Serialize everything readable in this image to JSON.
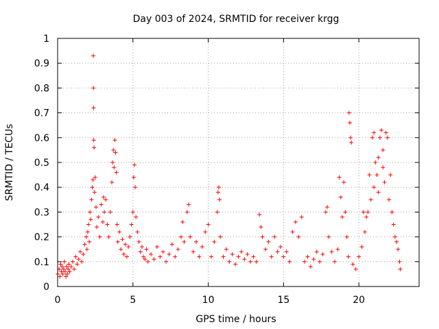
{
  "chart_data": {
    "type": "scatter",
    "title": "Day 003 of 2024, SRMTID for receiver krgg",
    "xlabel": "GPS time / hours",
    "ylabel": "SRMTID / TECUs",
    "xlim": [
      0,
      24
    ],
    "ylim": [
      0,
      1
    ],
    "xticks": [
      0,
      5,
      10,
      15,
      20
    ],
    "xtick_labels": [
      "0",
      "5",
      "10",
      "15",
      "20"
    ],
    "yticks": [
      0,
      0.1,
      0.2,
      0.3,
      0.4,
      0.5,
      0.6,
      0.7,
      0.8,
      0.9,
      1
    ],
    "ytick_labels": [
      "0",
      "0.1",
      "0.2",
      "0.3",
      "0.4",
      "0.5",
      "0.6",
      "0.7",
      "0.8",
      "0.9",
      "1"
    ],
    "grid": true,
    "marker": "+",
    "color": "#ff0000",
    "series": [
      {
        "name": "SRMTID",
        "points": [
          [
            0.0,
            0.05
          ],
          [
            0.1,
            0.07
          ],
          [
            0.15,
            0.04
          ],
          [
            0.2,
            0.09
          ],
          [
            0.25,
            0.06
          ],
          [
            0.3,
            0.08
          ],
          [
            0.35,
            0.05
          ],
          [
            0.4,
            0.07
          ],
          [
            0.45,
            0.1
          ],
          [
            0.5,
            0.06
          ],
          [
            0.55,
            0.04
          ],
          [
            0.6,
            0.08
          ],
          [
            0.65,
            0.05
          ],
          [
            0.7,
            0.07
          ],
          [
            0.75,
            0.09
          ],
          [
            0.8,
            0.06
          ],
          [
            0.9,
            0.08
          ],
          [
            1.0,
            0.1
          ],
          [
            1.1,
            0.07
          ],
          [
            1.2,
            0.12
          ],
          [
            1.3,
            0.09
          ],
          [
            1.4,
            0.11
          ],
          [
            1.5,
            0.14
          ],
          [
            1.6,
            0.1
          ],
          [
            1.7,
            0.13
          ],
          [
            1.8,
            0.17
          ],
          [
            1.9,
            0.2
          ],
          [
            1.95,
            0.15
          ],
          [
            2.0,
            0.22
          ],
          [
            2.05,
            0.25
          ],
          [
            2.1,
            0.18
          ],
          [
            2.15,
            0.3
          ],
          [
            2.2,
            0.27
          ],
          [
            2.25,
            0.35
          ],
          [
            2.3,
            0.4
          ],
          [
            2.35,
            0.43
          ],
          [
            2.37,
            0.93
          ],
          [
            2.38,
            0.8
          ],
          [
            2.39,
            0.72
          ],
          [
            2.4,
            0.59
          ],
          [
            2.42,
            0.56
          ],
          [
            2.45,
            0.38
          ],
          [
            2.5,
            0.44
          ],
          [
            2.55,
            0.32
          ],
          [
            2.6,
            0.24
          ],
          [
            2.7,
            0.28
          ],
          [
            2.8,
            0.2
          ],
          [
            2.9,
            0.33
          ],
          [
            3.0,
            0.26
          ],
          [
            3.05,
            0.36
          ],
          [
            3.1,
            0.3
          ],
          [
            3.2,
            0.35
          ],
          [
            3.3,
            0.25
          ],
          [
            3.4,
            0.2
          ],
          [
            3.5,
            0.3
          ],
          [
            3.6,
            0.42
          ],
          [
            3.65,
            0.5
          ],
          [
            3.7,
            0.55
          ],
          [
            3.75,
            0.48
          ],
          [
            3.8,
            0.59
          ],
          [
            3.85,
            0.54
          ],
          [
            3.9,
            0.46
          ],
          [
            3.95,
            0.25
          ],
          [
            4.0,
            0.18
          ],
          [
            4.1,
            0.22
          ],
          [
            4.2,
            0.15
          ],
          [
            4.3,
            0.19
          ],
          [
            4.4,
            0.13
          ],
          [
            4.5,
            0.17
          ],
          [
            4.6,
            0.12
          ],
          [
            4.7,
            0.16
          ],
          [
            4.8,
            0.2
          ],
          [
            4.9,
            0.25
          ],
          [
            5.0,
            0.3
          ],
          [
            5.05,
            0.44
          ],
          [
            5.1,
            0.49
          ],
          [
            5.15,
            0.4
          ],
          [
            5.2,
            0.28
          ],
          [
            5.3,
            0.22
          ],
          [
            5.4,
            0.18
          ],
          [
            5.5,
            0.14
          ],
          [
            5.6,
            0.16
          ],
          [
            5.7,
            0.12
          ],
          [
            5.8,
            0.11
          ],
          [
            5.9,
            0.15
          ],
          [
            6.0,
            0.1
          ],
          [
            6.2,
            0.13
          ],
          [
            6.4,
            0.11
          ],
          [
            6.6,
            0.16
          ],
          [
            6.8,
            0.12
          ],
          [
            7.0,
            0.14
          ],
          [
            7.2,
            0.1
          ],
          [
            7.4,
            0.13
          ],
          [
            7.6,
            0.17
          ],
          [
            7.8,
            0.12
          ],
          [
            8.0,
            0.15
          ],
          [
            8.2,
            0.2
          ],
          [
            8.3,
            0.26
          ],
          [
            8.4,
            0.18
          ],
          [
            8.6,
            0.3
          ],
          [
            8.7,
            0.33
          ],
          [
            8.8,
            0.2
          ],
          [
            9.0,
            0.14
          ],
          [
            9.2,
            0.18
          ],
          [
            9.4,
            0.12
          ],
          [
            9.6,
            0.16
          ],
          [
            9.8,
            0.22
          ],
          [
            10.0,
            0.25
          ],
          [
            10.2,
            0.12
          ],
          [
            10.4,
            0.18
          ],
          [
            10.6,
            0.3
          ],
          [
            10.65,
            0.38
          ],
          [
            10.7,
            0.4
          ],
          [
            10.75,
            0.35
          ],
          [
            10.8,
            0.2
          ],
          [
            11.0,
            0.12
          ],
          [
            11.2,
            0.15
          ],
          [
            11.4,
            0.1
          ],
          [
            11.6,
            0.13
          ],
          [
            11.8,
            0.09
          ],
          [
            12.0,
            0.12
          ],
          [
            12.2,
            0.14
          ],
          [
            12.4,
            0.11
          ],
          [
            12.6,
            0.13
          ],
          [
            12.8,
            0.1
          ],
          [
            13.0,
            0.12
          ],
          [
            13.2,
            0.1
          ],
          [
            13.4,
            0.29
          ],
          [
            13.5,
            0.24
          ],
          [
            13.6,
            0.2
          ],
          [
            13.8,
            0.15
          ],
          [
            14.0,
            0.18
          ],
          [
            14.2,
            0.12
          ],
          [
            14.4,
            0.2
          ],
          [
            14.6,
            0.14
          ],
          [
            14.8,
            0.16
          ],
          [
            15.0,
            0.12
          ],
          [
            15.2,
            0.14
          ],
          [
            15.4,
            0.1
          ],
          [
            15.6,
            0.22
          ],
          [
            15.8,
            0.26
          ],
          [
            16.0,
            0.2
          ],
          [
            16.2,
            0.28
          ],
          [
            16.4,
            0.1
          ],
          [
            16.6,
            0.12
          ],
          [
            16.8,
            0.08
          ],
          [
            17.0,
            0.11
          ],
          [
            17.2,
            0.14
          ],
          [
            17.4,
            0.1
          ],
          [
            17.6,
            0.13
          ],
          [
            17.8,
            0.3
          ],
          [
            17.9,
            0.32
          ],
          [
            18.0,
            0.2
          ],
          [
            18.2,
            0.14
          ],
          [
            18.4,
            0.1
          ],
          [
            18.6,
            0.15
          ],
          [
            18.7,
            0.44
          ],
          [
            18.8,
            0.36
          ],
          [
            18.9,
            0.28
          ],
          [
            19.0,
            0.42
          ],
          [
            19.1,
            0.3
          ],
          [
            19.2,
            0.2
          ],
          [
            19.3,
            0.12
          ],
          [
            19.35,
            0.7
          ],
          [
            19.4,
            0.66
          ],
          [
            19.45,
            0.6
          ],
          [
            19.5,
            0.58
          ],
          [
            19.6,
            0.09
          ],
          [
            19.8,
            0.07
          ],
          [
            20.0,
            0.12
          ],
          [
            20.2,
            0.16
          ],
          [
            20.4,
            0.22
          ],
          [
            20.5,
            0.28
          ],
          [
            20.6,
            0.3
          ],
          [
            20.8,
            0.35
          ],
          [
            20.9,
            0.6
          ],
          [
            21.0,
            0.62
          ],
          [
            21.1,
            0.5
          ],
          [
            21.2,
            0.45
          ],
          [
            21.3,
            0.38
          ],
          [
            21.4,
            0.6
          ],
          [
            21.5,
            0.63
          ],
          [
            21.6,
            0.55
          ],
          [
            21.7,
            0.42
          ],
          [
            21.8,
            0.62
          ],
          [
            21.9,
            0.6
          ],
          [
            22.0,
            0.35
          ],
          [
            22.1,
            0.45
          ],
          [
            22.2,
            0.3
          ],
          [
            22.3,
            0.25
          ],
          [
            22.4,
            0.2
          ],
          [
            22.5,
            0.18
          ],
          [
            22.6,
            0.15
          ],
          [
            22.7,
            0.1
          ],
          [
            22.75,
            0.07
          ],
          [
            20.3,
            0.3
          ],
          [
            20.7,
            0.45
          ],
          [
            21.0,
            0.4
          ],
          [
            21.3,
            0.52
          ],
          [
            21.6,
            0.48
          ]
        ]
      }
    ]
  }
}
